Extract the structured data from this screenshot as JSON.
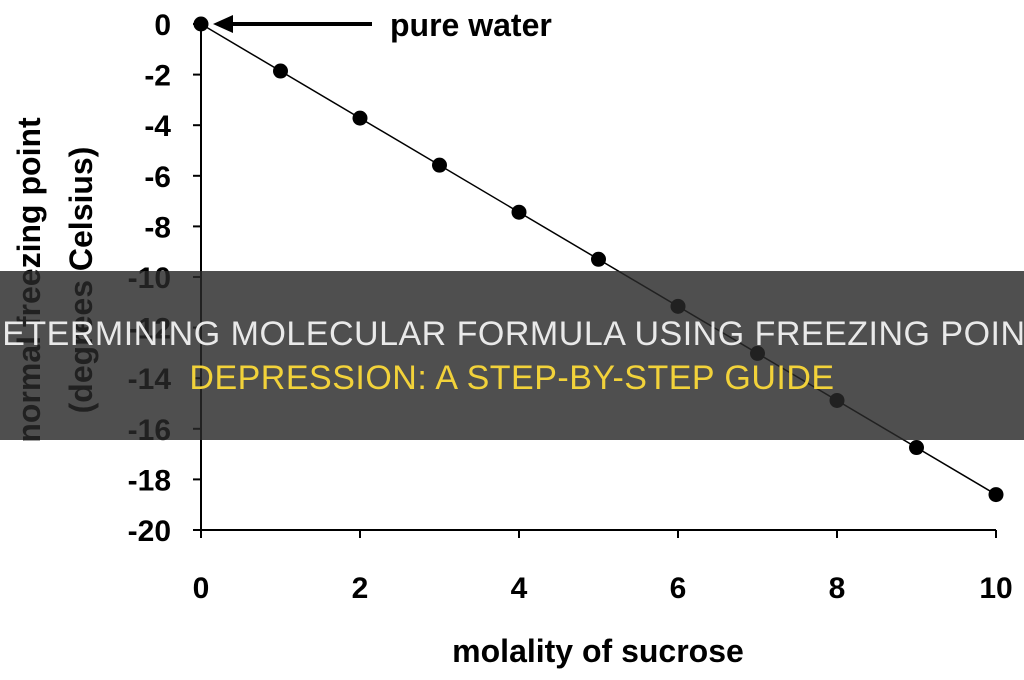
{
  "chart_data": {
    "type": "scatter",
    "title": "",
    "xlabel": "molality of sucrose",
    "ylabel_line1": "normal freezing point",
    "ylabel_line2": "(degrees Celsius)",
    "xlim": [
      0,
      10
    ],
    "ylim": [
      -20,
      0
    ],
    "x_ticks": [
      "0",
      "2",
      "4",
      "6",
      "8",
      "10"
    ],
    "y_ticks": [
      "0",
      "-2",
      "-4",
      "-6",
      "-8",
      "-10",
      "-12",
      "-14",
      "-16",
      "-18",
      "-20"
    ],
    "grid": false,
    "fit_line": true,
    "x": [
      0,
      1,
      2,
      3,
      4,
      5,
      6,
      7,
      8,
      9,
      10
    ],
    "y": [
      0,
      -1.86,
      -3.72,
      -5.58,
      -7.44,
      -9.3,
      -11.16,
      -13.02,
      -14.88,
      -16.74,
      -18.6
    ],
    "annotation": {
      "text": "pure water",
      "points_to_x": 0,
      "points_to_y": 0
    },
    "colors": {
      "points": "#000000",
      "line": "#000000"
    }
  },
  "banner": {
    "line1": "DETERMINING MOLECULAR FORMULA USING FREEZING POINT",
    "line2": "DEPRESSION: A STEP-BY-STEP GUIDE",
    "line1_color": "#e9e9e9",
    "line2_color": "#f2d23a"
  }
}
